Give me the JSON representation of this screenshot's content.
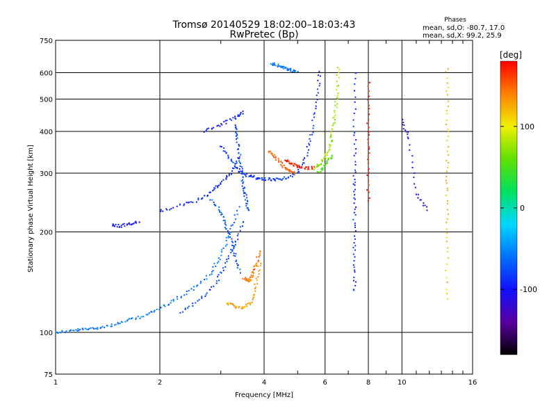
{
  "header": {
    "title_line1": "Tromsø 20140529 18:02:00–18:03:43",
    "title_line2": "RwPretec (Bp)"
  },
  "phases_box": {
    "title": "Phases",
    "line_o": "mean, sd,O: -80.7, 17.0",
    "line_x": "mean, sd,X:  99.2, 25.9"
  },
  "colorbar": {
    "unit": "[deg]",
    "min": -180,
    "max": 180,
    "ticks": [
      {
        "value": 100,
        "label": "100"
      },
      {
        "value": 0,
        "label": "0"
      },
      {
        "value": -100,
        "label": "-100"
      }
    ],
    "colors": [
      "#000000",
      "#5a00a0",
      "#1010ff",
      "#0070ff",
      "#00d8ff",
      "#00e060",
      "#60e000",
      "#f0f000",
      "#ff8000",
      "#ff0000"
    ]
  },
  "chart_data": {
    "type": "scatter",
    "title": "Tromsø 20140529 18:02:00–18:03:43",
    "subtitle": "RwPretec (Bp)",
    "xlabel": "Frequency [MHz]",
    "ylabel": "Stationary phase Virtual Height [km]",
    "x_scale": "log",
    "y_scale": "log",
    "xlim": [
      1,
      16
    ],
    "ylim": [
      75,
      750
    ],
    "grid": true,
    "x_ticks": [
      1,
      2,
      4,
      6,
      8,
      10,
      16
    ],
    "x_tick_labels": [
      "1",
      "2",
      "4",
      "6",
      "8",
      "10",
      "16"
    ],
    "y_ticks": [
      75,
      100,
      200,
      300,
      400,
      500,
      600,
      750
    ],
    "y_tick_labels": [
      "75",
      "100",
      "200",
      "300",
      "400",
      "500",
      "600",
      "750"
    ],
    "color_by": "phase [deg]",
    "traces": [
      {
        "phase": -60,
        "x": [
          1.0,
          1.1,
          1.2,
          1.3,
          1.45,
          1.6,
          1.8,
          2.0,
          2.2,
          2.5,
          2.8,
          3.0,
          3.2,
          3.4
        ],
        "y": [
          100,
          101,
          102,
          103,
          105,
          108,
          112,
          118,
          125,
          135,
          150,
          170,
          200,
          240
        ]
      },
      {
        "phase": -85,
        "x": [
          3.0,
          3.2,
          3.4,
          3.6,
          3.8,
          4.0,
          4.3,
          4.6,
          5.0,
          5.3,
          5.5,
          5.7,
          5.8
        ],
        "y": [
          360,
          330,
          305,
          295,
          290,
          288,
          287,
          290,
          300,
          340,
          400,
          500,
          620
        ]
      },
      {
        "phase": -75,
        "x": [
          3.3,
          3.35,
          3.4,
          3.45,
          3.5,
          3.55,
          3.6
        ],
        "y": [
          420,
          380,
          340,
          300,
          270,
          250,
          230
        ]
      },
      {
        "phase": -70,
        "x": [
          2.8,
          3.0,
          3.1,
          3.2,
          3.3,
          3.4
        ],
        "y": [
          250,
          230,
          210,
          190,
          170,
          150
        ]
      },
      {
        "phase": -80,
        "x": [
          2.3,
          2.6,
          2.9,
          3.1,
          3.3,
          3.5
        ],
        "y": [
          115,
          125,
          140,
          160,
          185,
          220
        ]
      },
      {
        "phase": -90,
        "x": [
          2.0,
          2.3,
          2.6,
          2.8,
          3.0,
          3.2,
          3.4
        ],
        "y": [
          230,
          240,
          250,
          262,
          280,
          300,
          340
        ]
      },
      {
        "phase": -60,
        "x": [
          4.2,
          4.4,
          4.6,
          4.8,
          5.0
        ],
        "y": [
          640,
          630,
          620,
          610,
          600
        ]
      },
      {
        "phase": -95,
        "x": [
          2.7,
          3.0,
          3.3,
          3.5
        ],
        "y": [
          400,
          420,
          440,
          460
        ]
      },
      {
        "phase": -100,
        "x": [
          1.45,
          1.55,
          1.65,
          1.75
        ],
        "y": [
          210,
          208,
          212,
          215
        ]
      },
      {
        "phase": 130,
        "x": [
          3.1,
          3.3,
          3.5,
          3.7,
          3.8,
          3.9
        ],
        "y": [
          122,
          120,
          118,
          125,
          140,
          165
        ]
      },
      {
        "phase": 145,
        "x": [
          3.5,
          3.6,
          3.7,
          3.8,
          3.9
        ],
        "y": [
          145,
          142,
          148,
          160,
          178
        ]
      },
      {
        "phase": 150,
        "x": [
          4.1,
          4.3,
          4.5,
          4.7,
          4.9
        ],
        "y": [
          350,
          335,
          320,
          305,
          300
        ]
      },
      {
        "phase": 170,
        "x": [
          4.6,
          4.8,
          5.0,
          5.3,
          5.6
        ],
        "y": [
          330,
          320,
          315,
          310,
          312
        ]
      },
      {
        "phase": 75,
        "x": [
          5.6,
          5.8,
          6.0,
          6.2,
          6.3,
          6.4,
          6.5,
          6.55
        ],
        "y": [
          310,
          320,
          335,
          360,
          400,
          450,
          520,
          640
        ]
      },
      {
        "phase": 55,
        "x": [
          5.7,
          5.9,
          6.1,
          6.3
        ],
        "y": [
          300,
          312,
          325,
          340
        ]
      },
      {
        "phase": -90,
        "x": [
          7.3,
          7.3,
          7.3,
          7.3,
          7.3,
          7.3,
          7.3
        ],
        "y": [
          600,
          400,
          300,
          250,
          200,
          160,
          130
        ]
      },
      {
        "phase": 120,
        "x": [
          13.5,
          13.5,
          13.5,
          13.5,
          13.5,
          13.5
        ],
        "y": [
          620,
          450,
          330,
          250,
          180,
          120
        ]
      },
      {
        "phase": -110,
        "x": [
          10.0,
          10.5,
          11.0,
          12.0
        ],
        "y": [
          430,
          380,
          260,
          230
        ]
      },
      {
        "phase": 170,
        "x": [
          8.0,
          8.0,
          8.0,
          8.0
        ],
        "y": [
          560,
          410,
          320,
          240
        ]
      }
    ]
  }
}
